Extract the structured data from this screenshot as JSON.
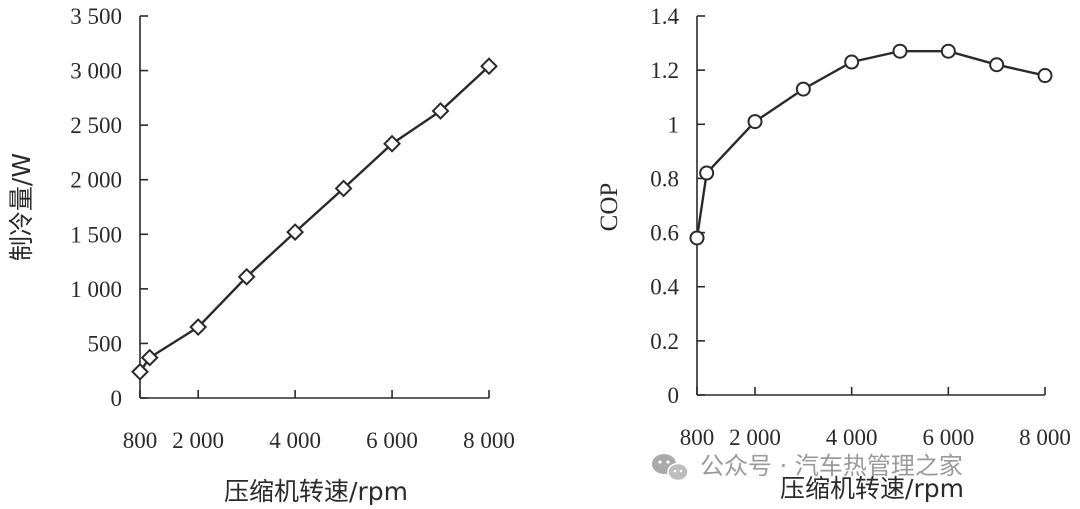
{
  "chart_data": [
    {
      "type": "line",
      "xlabel": "压缩机转速/rpm",
      "ylabel": "制冷量/W",
      "x": [
        800,
        1000,
        2000,
        3000,
        4000,
        5000,
        6000,
        7000,
        8000
      ],
      "values": [
        240,
        370,
        650,
        1110,
        1520,
        1920,
        2330,
        2630,
        3040
      ],
      "xlim": [
        800,
        8000
      ],
      "ylim": [
        0,
        3500
      ],
      "xticks": [
        800,
        2000,
        4000,
        6000,
        8000
      ],
      "xtick_labels": [
        "800",
        "2 000",
        "4 000",
        "6 000",
        "8 000"
      ],
      "yticks": [
        0,
        500,
        1000,
        1500,
        2000,
        2500,
        3000,
        3500
      ],
      "ytick_labels": [
        "0",
        "500",
        "1 000",
        "1 500",
        "2 000",
        "2 500",
        "3 000",
        "3 500"
      ],
      "marker": "diamond",
      "grid": false
    },
    {
      "type": "line",
      "xlabel": "压缩机转速/rpm",
      "ylabel": "COP",
      "x": [
        800,
        1000,
        2000,
        3000,
        4000,
        5000,
        6000,
        7000,
        8000
      ],
      "values": [
        0.58,
        0.82,
        1.01,
        1.13,
        1.23,
        1.27,
        1.27,
        1.22,
        1.18
      ],
      "xlim": [
        800,
        8000
      ],
      "ylim": [
        0,
        1.4
      ],
      "xticks": [
        800,
        2000,
        4000,
        6000,
        8000
      ],
      "xtick_labels": [
        "800",
        "2 000",
        "4 000",
        "6 000",
        "8 000"
      ],
      "yticks": [
        0,
        0.2,
        0.4,
        0.6,
        0.8,
        1,
        1.2,
        1.4
      ],
      "ytick_labels": [
        "0",
        "0.2",
        "0.4",
        "0.6",
        "0.8",
        "1",
        "1.2",
        "1.4"
      ],
      "marker": "circle",
      "grid": false
    }
  ],
  "watermark": {
    "text": "公众号 · 汽车热管理之家",
    "icon": "wechat-icon"
  },
  "colors": {
    "ink": "#2a2a2a",
    "watermark": "#9a9a9a"
  }
}
